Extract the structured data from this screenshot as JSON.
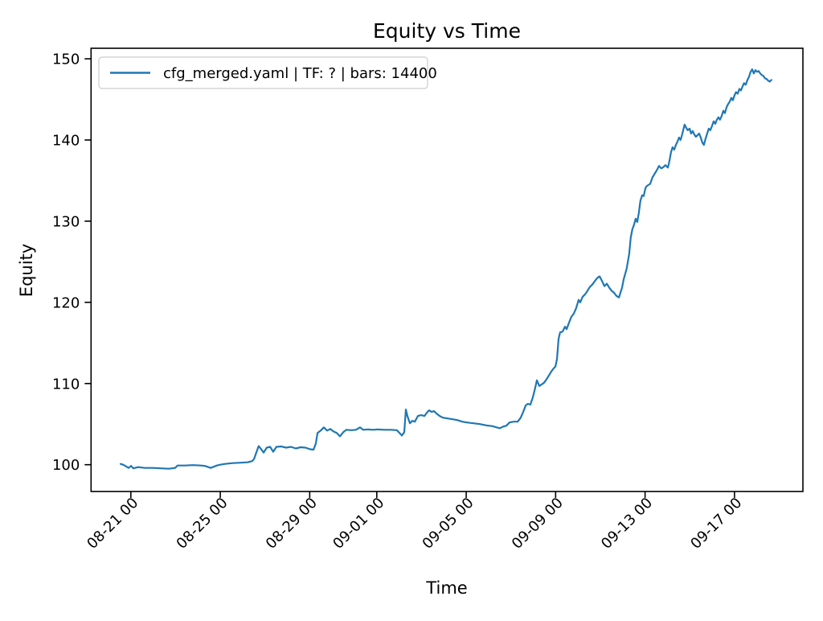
{
  "chart_data": {
    "type": "line",
    "title": "Equity vs Time",
    "xlabel": "Time",
    "ylabel": "Equity",
    "grid": false,
    "legend_position": "upper left",
    "xlim_days_since_0820": [
      -0.78,
      31.06
    ],
    "ylim": [
      96.7,
      151.3
    ],
    "xticks": [
      {
        "pos": 1,
        "label": "08-21 00"
      },
      {
        "pos": 5,
        "label": "08-25 00"
      },
      {
        "pos": 9,
        "label": "08-29 00"
      },
      {
        "pos": 12,
        "label": "09-01 00"
      },
      {
        "pos": 16,
        "label": "09-05 00"
      },
      {
        "pos": 20,
        "label": "09-09 00"
      },
      {
        "pos": 24,
        "label": "09-13 00"
      },
      {
        "pos": 28,
        "label": "09-17 00"
      }
    ],
    "yticks": [
      {
        "pos": 100,
        "label": "100"
      },
      {
        "pos": 110,
        "label": "110"
      },
      {
        "pos": 120,
        "label": "120"
      },
      {
        "pos": 130,
        "label": "130"
      },
      {
        "pos": 140,
        "label": "140"
      },
      {
        "pos": 150,
        "label": "150"
      }
    ],
    "series": [
      {
        "name": "cfg_merged.yaml | TF: ? | bars: 14400",
        "color": "#1f77b4",
        "x_unit": "days since 08-20 00:00",
        "points": [
          [
            0.54,
            100.1
          ],
          [
            0.65,
            100.0
          ],
          [
            0.72,
            99.9
          ],
          [
            0.9,
            99.6
          ],
          [
            1.01,
            99.85
          ],
          [
            1.11,
            99.55
          ],
          [
            1.33,
            99.7
          ],
          [
            1.62,
            99.6
          ],
          [
            1.98,
            99.6
          ],
          [
            2.34,
            99.55
          ],
          [
            2.7,
            99.5
          ],
          [
            2.98,
            99.6
          ],
          [
            3.09,
            99.9
          ],
          [
            3.42,
            99.9
          ],
          [
            3.77,
            99.95
          ],
          [
            4.13,
            99.9
          ],
          [
            4.31,
            99.85
          ],
          [
            4.57,
            99.6
          ],
          [
            4.71,
            99.75
          ],
          [
            4.85,
            99.9
          ],
          [
            5.0,
            100.0
          ],
          [
            5.21,
            100.1
          ],
          [
            5.57,
            100.2
          ],
          [
            5.93,
            100.25
          ],
          [
            6.22,
            100.3
          ],
          [
            6.43,
            100.45
          ],
          [
            6.51,
            100.7
          ],
          [
            6.61,
            101.5
          ],
          [
            6.72,
            102.3
          ],
          [
            6.83,
            101.9
          ],
          [
            6.94,
            101.5
          ],
          [
            7.08,
            102.1
          ],
          [
            7.23,
            102.2
          ],
          [
            7.37,
            101.6
          ],
          [
            7.51,
            102.2
          ],
          [
            7.73,
            102.25
          ],
          [
            7.94,
            102.1
          ],
          [
            8.16,
            102.2
          ],
          [
            8.38,
            102.0
          ],
          [
            8.59,
            102.15
          ],
          [
            8.81,
            102.1
          ],
          [
            9.02,
            101.9
          ],
          [
            9.17,
            101.85
          ],
          [
            9.27,
            102.6
          ],
          [
            9.35,
            103.9
          ],
          [
            9.49,
            104.2
          ],
          [
            9.63,
            104.6
          ],
          [
            9.78,
            104.2
          ],
          [
            9.92,
            104.4
          ],
          [
            10.06,
            104.1
          ],
          [
            10.21,
            103.9
          ],
          [
            10.35,
            103.5
          ],
          [
            10.5,
            104.0
          ],
          [
            10.64,
            104.3
          ],
          [
            10.86,
            104.25
          ],
          [
            11.07,
            104.3
          ],
          [
            11.25,
            104.6
          ],
          [
            11.39,
            104.3
          ],
          [
            11.61,
            104.35
          ],
          [
            11.83,
            104.3
          ],
          [
            12.04,
            104.35
          ],
          [
            12.33,
            104.3
          ],
          [
            12.62,
            104.3
          ],
          [
            12.9,
            104.25
          ],
          [
            13.12,
            103.6
          ],
          [
            13.23,
            104.0
          ],
          [
            13.3,
            106.8
          ],
          [
            13.37,
            106.0
          ],
          [
            13.48,
            105.1
          ],
          [
            13.59,
            105.4
          ],
          [
            13.7,
            105.3
          ],
          [
            13.84,
            106.0
          ],
          [
            13.98,
            106.1
          ],
          [
            14.13,
            106.0
          ],
          [
            14.24,
            106.4
          ],
          [
            14.34,
            106.7
          ],
          [
            14.45,
            106.5
          ],
          [
            14.56,
            106.6
          ],
          [
            14.67,
            106.3
          ],
          [
            14.81,
            106.0
          ],
          [
            14.95,
            105.8
          ],
          [
            15.17,
            105.7
          ],
          [
            15.39,
            105.6
          ],
          [
            15.6,
            105.5
          ],
          [
            15.82,
            105.3
          ],
          [
            16.03,
            105.2
          ],
          [
            16.32,
            105.1
          ],
          [
            16.61,
            105.0
          ],
          [
            16.9,
            104.85
          ],
          [
            17.18,
            104.75
          ],
          [
            17.36,
            104.6
          ],
          [
            17.51,
            104.5
          ],
          [
            17.65,
            104.7
          ],
          [
            17.79,
            104.8
          ],
          [
            17.94,
            105.2
          ],
          [
            18.12,
            105.3
          ],
          [
            18.3,
            105.3
          ],
          [
            18.44,
            105.8
          ],
          [
            18.55,
            106.5
          ],
          [
            18.66,
            107.3
          ],
          [
            18.76,
            107.5
          ],
          [
            18.87,
            107.4
          ],
          [
            18.98,
            108.3
          ],
          [
            19.09,
            109.5
          ],
          [
            19.16,
            110.4
          ],
          [
            19.27,
            109.7
          ],
          [
            19.38,
            109.9
          ],
          [
            19.48,
            110.1
          ],
          [
            19.59,
            110.5
          ],
          [
            19.7,
            111.0
          ],
          [
            19.81,
            111.5
          ],
          [
            19.92,
            111.9
          ],
          [
            19.99,
            112.1
          ],
          [
            20.06,
            113.0
          ],
          [
            20.13,
            115.5
          ],
          [
            20.2,
            116.3
          ],
          [
            20.31,
            116.4
          ],
          [
            20.42,
            117.0
          ],
          [
            20.49,
            116.7
          ],
          [
            20.6,
            117.5
          ],
          [
            20.7,
            118.2
          ],
          [
            20.81,
            118.6
          ],
          [
            20.92,
            119.3
          ],
          [
            21.03,
            120.3
          ],
          [
            21.1,
            120.0
          ],
          [
            21.21,
            120.7
          ],
          [
            21.32,
            121.0
          ],
          [
            21.42,
            121.4
          ],
          [
            21.53,
            121.9
          ],
          [
            21.64,
            122.2
          ],
          [
            21.75,
            122.6
          ],
          [
            21.86,
            123.0
          ],
          [
            21.97,
            123.2
          ],
          [
            22.08,
            122.6
          ],
          [
            22.18,
            122.0
          ],
          [
            22.29,
            122.3
          ],
          [
            22.4,
            121.8
          ],
          [
            22.51,
            121.4
          ],
          [
            22.61,
            121.2
          ],
          [
            22.72,
            120.8
          ],
          [
            22.83,
            120.6
          ],
          [
            22.9,
            121.2
          ],
          [
            22.97,
            121.8
          ],
          [
            23.04,
            122.8
          ],
          [
            23.11,
            123.5
          ],
          [
            23.18,
            124.2
          ],
          [
            23.29,
            126.0
          ],
          [
            23.36,
            128.0
          ],
          [
            23.43,
            129.0
          ],
          [
            23.51,
            129.6
          ],
          [
            23.58,
            130.3
          ],
          [
            23.65,
            129.9
          ],
          [
            23.72,
            131.0
          ],
          [
            23.79,
            132.5
          ],
          [
            23.87,
            133.2
          ],
          [
            23.94,
            133.1
          ],
          [
            24.01,
            134.0
          ],
          [
            24.06,
            134.3
          ],
          [
            24.12,
            134.4
          ],
          [
            24.23,
            134.6
          ],
          [
            24.33,
            135.4
          ],
          [
            24.44,
            135.9
          ],
          [
            24.55,
            136.4
          ],
          [
            24.62,
            136.8
          ],
          [
            24.73,
            136.5
          ],
          [
            24.84,
            136.7
          ],
          [
            24.91,
            136.9
          ],
          [
            25.02,
            136.6
          ],
          [
            25.09,
            137.4
          ],
          [
            25.16,
            138.5
          ],
          [
            25.23,
            139.1
          ],
          [
            25.3,
            138.8
          ],
          [
            25.38,
            139.4
          ],
          [
            25.45,
            139.8
          ],
          [
            25.52,
            140.3
          ],
          [
            25.59,
            140.0
          ],
          [
            25.66,
            140.7
          ],
          [
            25.77,
            141.9
          ],
          [
            25.84,
            141.5
          ],
          [
            25.91,
            141.2
          ],
          [
            25.99,
            141.4
          ],
          [
            26.06,
            140.8
          ],
          [
            26.13,
            141.1
          ],
          [
            26.2,
            140.7
          ],
          [
            26.27,
            140.4
          ],
          [
            26.35,
            140.6
          ],
          [
            26.42,
            140.8
          ],
          [
            26.49,
            140.3
          ],
          [
            26.56,
            139.7
          ],
          [
            26.63,
            139.4
          ],
          [
            26.71,
            140.2
          ],
          [
            26.78,
            140.8
          ],
          [
            26.85,
            141.4
          ],
          [
            26.92,
            141.2
          ],
          [
            26.99,
            141.7
          ],
          [
            27.07,
            142.3
          ],
          [
            27.14,
            142.0
          ],
          [
            27.21,
            142.5
          ],
          [
            27.28,
            142.8
          ],
          [
            27.35,
            142.5
          ],
          [
            27.42,
            142.9
          ],
          [
            27.5,
            143.6
          ],
          [
            27.57,
            143.3
          ],
          [
            27.64,
            144.0
          ],
          [
            27.71,
            144.4
          ],
          [
            27.78,
            144.7
          ],
          [
            27.86,
            145.2
          ],
          [
            27.93,
            144.9
          ],
          [
            28.0,
            145.5
          ],
          [
            28.07,
            145.9
          ],
          [
            28.14,
            145.7
          ],
          [
            28.22,
            146.3
          ],
          [
            28.29,
            146.1
          ],
          [
            28.36,
            146.6
          ],
          [
            28.43,
            147.0
          ],
          [
            28.5,
            146.8
          ],
          [
            28.58,
            147.4
          ],
          [
            28.65,
            147.8
          ],
          [
            28.72,
            148.4
          ],
          [
            28.79,
            148.7
          ],
          [
            28.86,
            148.2
          ],
          [
            28.94,
            148.6
          ],
          [
            29.01,
            148.4
          ],
          [
            29.08,
            148.5
          ],
          [
            29.15,
            148.2
          ],
          [
            29.22,
            148.0
          ],
          [
            29.29,
            147.9
          ],
          [
            29.36,
            147.6
          ],
          [
            29.44,
            147.5
          ],
          [
            29.51,
            147.3
          ],
          [
            29.58,
            147.2
          ],
          [
            29.65,
            147.4
          ]
        ]
      }
    ]
  }
}
